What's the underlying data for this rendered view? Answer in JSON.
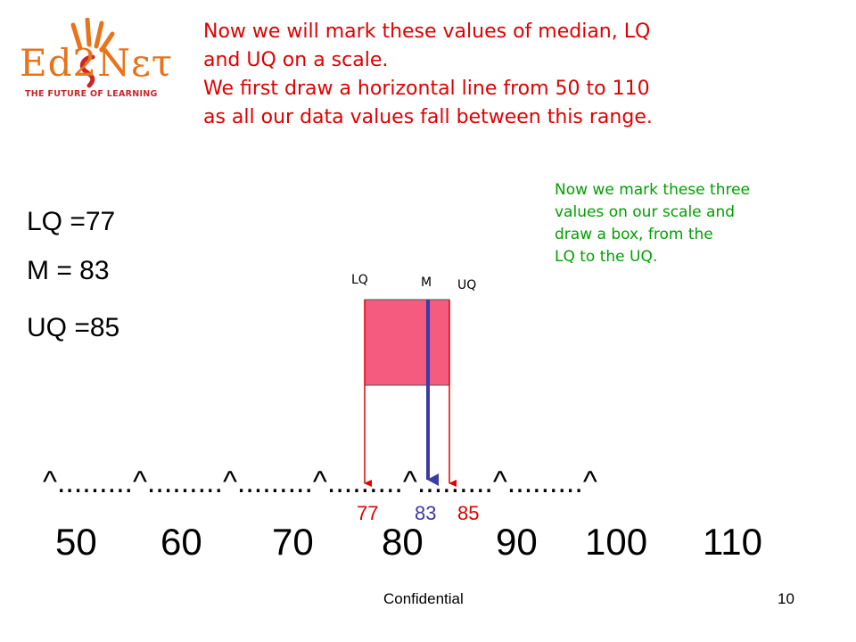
{
  "logo": {
    "wordmark": "Ed2Nετ",
    "tagline": "THE FUTURE OF LEARNING"
  },
  "intro": {
    "lines": [
      "Now we will mark these values of median, LQ",
      "and UQ on a scale.",
      "We first draw a horizontal line from 50 to 110",
      "as all our data values fall between this range."
    ]
  },
  "note": {
    "lines": [
      "Now we mark these three",
      "values on our scale and",
      "draw a  box, from the",
      "LQ to the UQ."
    ]
  },
  "stats": {
    "lq": "LQ =77",
    "m": "M =  83",
    "uq": "UQ =85"
  },
  "box_labels": {
    "lq": "LQ",
    "m": "M",
    "uq": "UQ"
  },
  "scale": {
    "line_text": "^.........^.........^.........^.........^.........^.........^",
    "ticks": [
      "50",
      "60",
      "70",
      "80",
      "90",
      "100",
      "110"
    ]
  },
  "marks": {
    "lq": "77",
    "m": "83",
    "uq": "85"
  },
  "colors": {
    "intro_text": "#e00000",
    "note_text": "#00a000",
    "box_fill": "#f45b7e",
    "lq_uq": "#e00000",
    "median": "#3a3aa8"
  },
  "footer": {
    "label": "Confidential",
    "page": "10"
  }
}
